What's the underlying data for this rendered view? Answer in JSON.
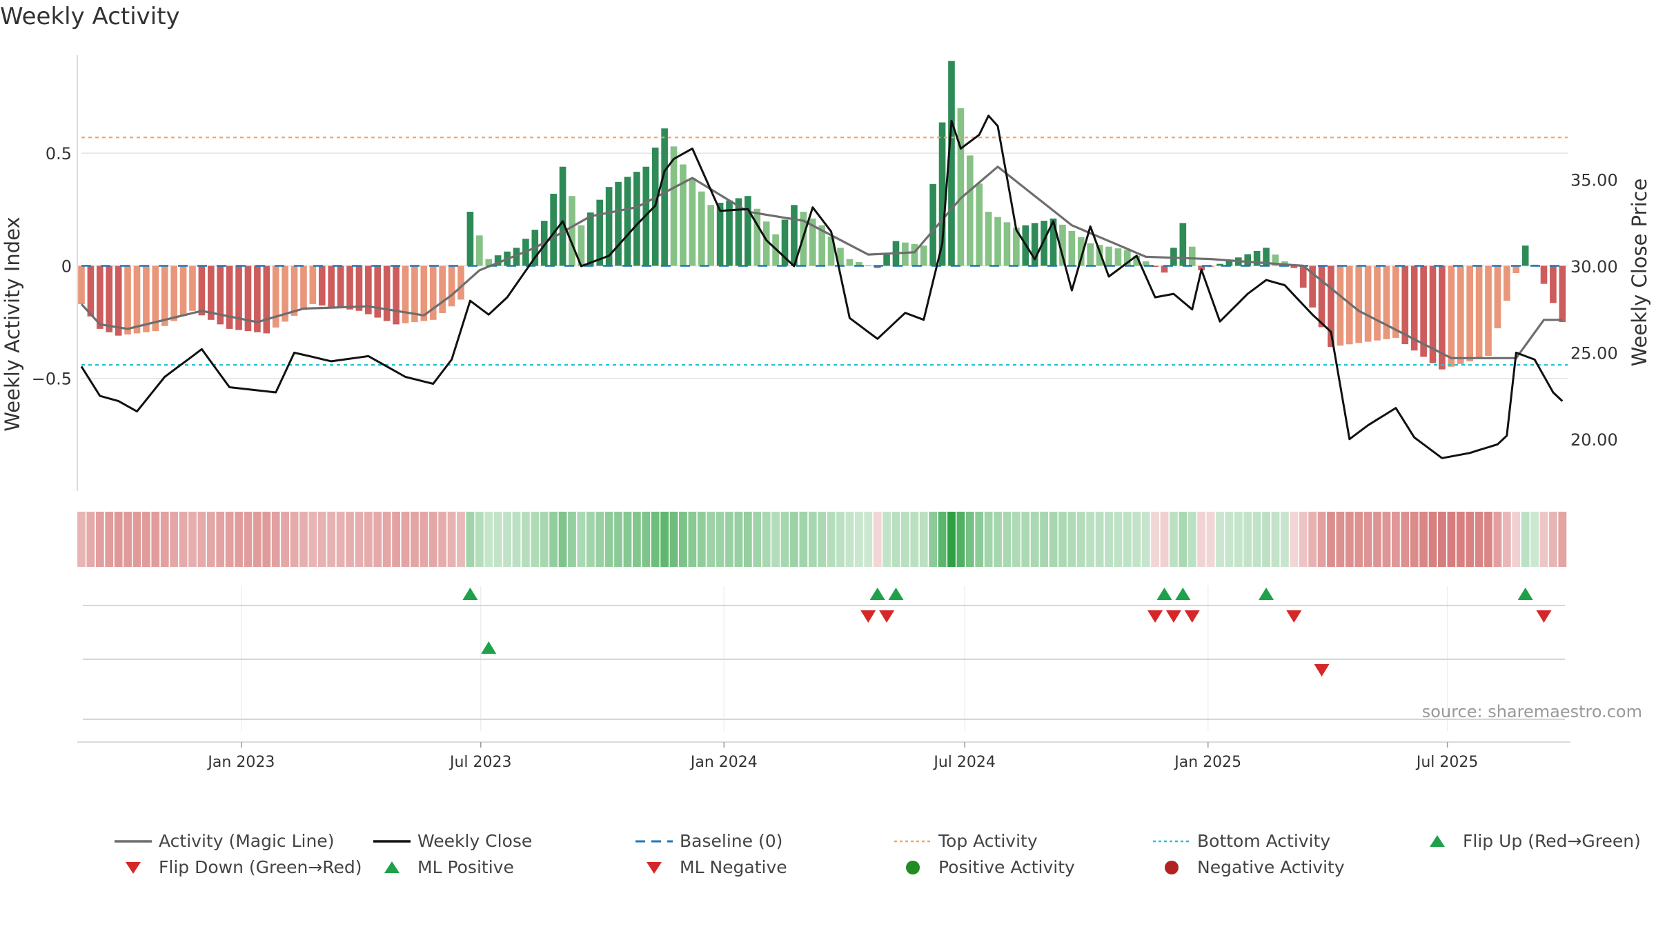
{
  "title": "Weekly Activity",
  "source": "source: sharemaestro.com",
  "colors": {
    "green_dark": "#2e8b57",
    "green_light": "#86c286",
    "red_dark": "#cd5c5c",
    "red_light": "#e9967a",
    "magic_line": "#6e6e6e",
    "close_line": "#111111",
    "baseline": "#1f77b4",
    "top": "#f4a460",
    "bottom": "#22c3d6",
    "flip_up": "#1fa14a",
    "flip_down": "#d62728",
    "pos_dot": "#228b22",
    "neg_dot": "#b22222"
  },
  "legend": [
    {
      "label": "Activity (Magic Line)",
      "icon": "solid-gray-line"
    },
    {
      "label": "Weekly Close",
      "icon": "solid-black-line"
    },
    {
      "label": "Baseline (0)",
      "icon": "dashed-blue-line"
    },
    {
      "label": "Top Activity",
      "icon": "dotted-orange-line"
    },
    {
      "label": "Bottom Activity",
      "icon": "dotted-cyan-line"
    },
    {
      "label": "Flip Up (Red→Green)",
      "icon": "green-up-triangle"
    },
    {
      "label": "Flip Down (Green→Red)",
      "icon": "red-down-triangle"
    },
    {
      "label": "ML Positive",
      "icon": "green-up-triangle"
    },
    {
      "label": "ML Negative",
      "icon": "red-down-triangle"
    },
    {
      "label": "Positive Activity",
      "icon": "green-dot"
    },
    {
      "label": "Negative Activity",
      "icon": "red-dot"
    }
  ],
  "chart_data": {
    "type": "bar",
    "ylabel": "Weekly Activity Index",
    "ylabel_right": "Weekly Close Price",
    "ylim": [
      -1.0,
      0.92
    ],
    "ylim_right": [
      17.0,
      42.0
    ],
    "yticks": [
      {
        "v": 0.5,
        "label": "0.5"
      },
      {
        "v": 0.0,
        "label": "0"
      },
      {
        "v": -0.5,
        "label": "−0.5"
      }
    ],
    "yticks_right": [
      {
        "v": 35,
        "label": "35.00"
      },
      {
        "v": 30,
        "label": "30.00"
      },
      {
        "v": 25,
        "label": "25.00"
      },
      {
        "v": 20,
        "label": "20.00"
      }
    ],
    "x_start": "2022-09-02",
    "x_end": "2025-09-30",
    "xticks": [
      {
        "date": "2023-01-01",
        "label": "Jan 2023"
      },
      {
        "date": "2023-07-01",
        "label": "Jul 2023"
      },
      {
        "date": "2024-01-01",
        "label": "Jan 2024"
      },
      {
        "date": "2024-07-01",
        "label": "Jul 2024"
      },
      {
        "date": "2025-01-01",
        "label": "Jan 2025"
      },
      {
        "date": "2025-07-01",
        "label": "Jul 2025"
      }
    ],
    "top_activity": 0.57,
    "bottom_activity": -0.44,
    "activity_keys": [
      {
        "date": "2022-09-02",
        "v": -0.17
      },
      {
        "date": "2022-09-16",
        "v": -0.28
      },
      {
        "date": "2022-09-30",
        "v": -0.31
      },
      {
        "date": "2022-10-28",
        "v": -0.29
      },
      {
        "date": "2022-11-25",
        "v": -0.2
      },
      {
        "date": "2022-12-23",
        "v": -0.28
      },
      {
        "date": "2023-01-20",
        "v": -0.3
      },
      {
        "date": "2023-02-24",
        "v": -0.17
      },
      {
        "date": "2023-03-31",
        "v": -0.2
      },
      {
        "date": "2023-04-28",
        "v": -0.26
      },
      {
        "date": "2023-05-26",
        "v": -0.24
      },
      {
        "date": "2023-06-16",
        "v": -0.15
      },
      {
        "date": "2023-06-23",
        "v": 0.24
      },
      {
        "date": "2023-07-07",
        "v": 0.03
      },
      {
        "date": "2023-07-28",
        "v": 0.08
      },
      {
        "date": "2023-08-18",
        "v": 0.2
      },
      {
        "date": "2023-09-01",
        "v": 0.44
      },
      {
        "date": "2023-09-15",
        "v": 0.18
      },
      {
        "date": "2023-10-06",
        "v": 0.35
      },
      {
        "date": "2023-11-03",
        "v": 0.44
      },
      {
        "date": "2023-11-17",
        "v": 0.61
      },
      {
        "date": "2023-12-01",
        "v": 0.45
      },
      {
        "date": "2023-12-22",
        "v": 0.27
      },
      {
        "date": "2024-01-19",
        "v": 0.31
      },
      {
        "date": "2024-02-09",
        "v": 0.14
      },
      {
        "date": "2024-02-23",
        "v": 0.27
      },
      {
        "date": "2024-03-15",
        "v": 0.18
      },
      {
        "date": "2024-04-05",
        "v": 0.03
      },
      {
        "date": "2024-04-26",
        "v": -0.01
      },
      {
        "date": "2024-05-10",
        "v": 0.11
      },
      {
        "date": "2024-05-31",
        "v": 0.09
      },
      {
        "date": "2024-06-21",
        "v": 0.91
      },
      {
        "date": "2024-07-05",
        "v": 0.49
      },
      {
        "date": "2024-07-19",
        "v": 0.24
      },
      {
        "date": "2024-08-09",
        "v": 0.17
      },
      {
        "date": "2024-09-06",
        "v": 0.21
      },
      {
        "date": "2024-10-04",
        "v": 0.1
      },
      {
        "date": "2024-11-01",
        "v": 0.07
      },
      {
        "date": "2024-11-29",
        "v": -0.03
      },
      {
        "date": "2024-12-13",
        "v": 0.19
      },
      {
        "date": "2024-12-27",
        "v": -0.02
      },
      {
        "date": "2025-02-14",
        "v": 0.08
      },
      {
        "date": "2025-03-07",
        "v": -0.01
      },
      {
        "date": "2025-04-04",
        "v": -0.36
      },
      {
        "date": "2025-05-23",
        "v": -0.32
      },
      {
        "date": "2025-06-27",
        "v": -0.46
      },
      {
        "date": "2025-08-01",
        "v": -0.4
      },
      {
        "date": "2025-08-29",
        "v": 0.09
      },
      {
        "date": "2025-09-12",
        "v": -0.08
      },
      {
        "date": "2025-09-26",
        "v": -0.25
      }
    ],
    "magic_line_keys": [
      {
        "date": "2022-09-02",
        "v": -0.17
      },
      {
        "date": "2022-09-16",
        "v": -0.26
      },
      {
        "date": "2022-10-07",
        "v": -0.28
      },
      {
        "date": "2022-12-02",
        "v": -0.2
      },
      {
        "date": "2023-01-13",
        "v": -0.25
      },
      {
        "date": "2023-02-17",
        "v": -0.19
      },
      {
        "date": "2023-04-07",
        "v": -0.18
      },
      {
        "date": "2023-05-19",
        "v": -0.22
      },
      {
        "date": "2023-06-09",
        "v": -0.13
      },
      {
        "date": "2023-06-30",
        "v": -0.02
      },
      {
        "date": "2023-08-11",
        "v": 0.08
      },
      {
        "date": "2023-09-22",
        "v": 0.22
      },
      {
        "date": "2023-10-27",
        "v": 0.26
      },
      {
        "date": "2023-12-08",
        "v": 0.39
      },
      {
        "date": "2024-01-19",
        "v": 0.24
      },
      {
        "date": "2024-03-01",
        "v": 0.2
      },
      {
        "date": "2024-04-19",
        "v": 0.05
      },
      {
        "date": "2024-05-24",
        "v": 0.06
      },
      {
        "date": "2024-06-28",
        "v": 0.3
      },
      {
        "date": "2024-07-26",
        "v": 0.44
      },
      {
        "date": "2024-09-20",
        "v": 0.18
      },
      {
        "date": "2024-11-15",
        "v": 0.04
      },
      {
        "date": "2025-01-03",
        "v": 0.03
      },
      {
        "date": "2025-03-14",
        "v": 0.0
      },
      {
        "date": "2025-04-25",
        "v": -0.2
      },
      {
        "date": "2025-07-04",
        "v": -0.41
      },
      {
        "date": "2025-08-22",
        "v": -0.41
      },
      {
        "date": "2025-09-12",
        "v": -0.24
      },
      {
        "date": "2025-09-26",
        "v": -0.24
      }
    ],
    "close_keys": [
      {
        "date": "2022-09-02",
        "v": 24.2
      },
      {
        "date": "2022-09-16",
        "v": 22.5
      },
      {
        "date": "2022-09-30",
        "v": 22.2
      },
      {
        "date": "2022-10-14",
        "v": 21.6
      },
      {
        "date": "2022-11-04",
        "v": 23.6
      },
      {
        "date": "2022-12-02",
        "v": 25.2
      },
      {
        "date": "2022-12-23",
        "v": 23.0
      },
      {
        "date": "2023-01-27",
        "v": 22.7
      },
      {
        "date": "2023-02-10",
        "v": 25.0
      },
      {
        "date": "2023-03-10",
        "v": 24.5
      },
      {
        "date": "2023-04-07",
        "v": 24.8
      },
      {
        "date": "2023-05-05",
        "v": 23.6
      },
      {
        "date": "2023-05-26",
        "v": 23.2
      },
      {
        "date": "2023-06-09",
        "v": 24.6
      },
      {
        "date": "2023-06-23",
        "v": 28.0
      },
      {
        "date": "2023-07-07",
        "v": 27.2
      },
      {
        "date": "2023-07-21",
        "v": 28.2
      },
      {
        "date": "2023-08-11",
        "v": 30.5
      },
      {
        "date": "2023-09-01",
        "v": 32.6
      },
      {
        "date": "2023-09-15",
        "v": 30.0
      },
      {
        "date": "2023-10-06",
        "v": 30.6
      },
      {
        "date": "2023-10-27",
        "v": 32.4
      },
      {
        "date": "2023-11-10",
        "v": 33.5
      },
      {
        "date": "2023-11-17",
        "v": 35.5
      },
      {
        "date": "2023-11-24",
        "v": 36.2
      },
      {
        "date": "2023-12-08",
        "v": 36.8
      },
      {
        "date": "2023-12-29",
        "v": 33.2
      },
      {
        "date": "2024-01-19",
        "v": 33.3
      },
      {
        "date": "2024-02-02",
        "v": 31.5
      },
      {
        "date": "2024-02-23",
        "v": 30.0
      },
      {
        "date": "2024-03-08",
        "v": 33.4
      },
      {
        "date": "2024-03-22",
        "v": 32.0
      },
      {
        "date": "2024-04-05",
        "v": 27.0
      },
      {
        "date": "2024-04-26",
        "v": 25.8
      },
      {
        "date": "2024-05-17",
        "v": 27.3
      },
      {
        "date": "2024-05-31",
        "v": 26.9
      },
      {
        "date": "2024-06-14",
        "v": 31.3
      },
      {
        "date": "2024-06-21",
        "v": 38.4
      },
      {
        "date": "2024-06-28",
        "v": 36.8
      },
      {
        "date": "2024-07-12",
        "v": 37.6
      },
      {
        "date": "2024-07-19",
        "v": 38.7
      },
      {
        "date": "2024-07-26",
        "v": 38.1
      },
      {
        "date": "2024-08-09",
        "v": 32.1
      },
      {
        "date": "2024-08-23",
        "v": 30.4
      },
      {
        "date": "2024-09-06",
        "v": 32.6
      },
      {
        "date": "2024-09-20",
        "v": 28.6
      },
      {
        "date": "2024-10-04",
        "v": 32.3
      },
      {
        "date": "2024-10-18",
        "v": 29.4
      },
      {
        "date": "2024-11-08",
        "v": 30.6
      },
      {
        "date": "2024-11-22",
        "v": 28.2
      },
      {
        "date": "2024-12-06",
        "v": 28.4
      },
      {
        "date": "2024-12-20",
        "v": 27.5
      },
      {
        "date": "2024-12-27",
        "v": 29.8
      },
      {
        "date": "2025-01-10",
        "v": 26.8
      },
      {
        "date": "2025-01-31",
        "v": 28.4
      },
      {
        "date": "2025-02-14",
        "v": 29.2
      },
      {
        "date": "2025-02-28",
        "v": 28.9
      },
      {
        "date": "2025-03-21",
        "v": 27.2
      },
      {
        "date": "2025-04-04",
        "v": 26.2
      },
      {
        "date": "2025-04-18",
        "v": 20.0
      },
      {
        "date": "2025-05-02",
        "v": 20.8
      },
      {
        "date": "2025-05-23",
        "v": 21.8
      },
      {
        "date": "2025-06-06",
        "v": 20.1
      },
      {
        "date": "2025-06-27",
        "v": 18.9
      },
      {
        "date": "2025-07-18",
        "v": 19.2
      },
      {
        "date": "2025-08-08",
        "v": 19.7
      },
      {
        "date": "2025-08-15",
        "v": 20.2
      },
      {
        "date": "2025-08-22",
        "v": 25.0
      },
      {
        "date": "2025-09-05",
        "v": 24.6
      },
      {
        "date": "2025-09-19",
        "v": 22.7
      },
      {
        "date": "2025-09-26",
        "v": 22.2
      }
    ],
    "flip_up_dates": [
      "2023-06-23",
      "2024-04-26",
      "2024-05-10",
      "2024-11-29",
      "2024-12-13",
      "2025-02-14",
      "2025-08-29"
    ],
    "flip_down_dates": [
      "2024-04-19",
      "2024-05-03",
      "2024-11-22",
      "2024-12-06",
      "2024-12-20",
      "2025-03-07",
      "2025-09-12"
    ],
    "ml_positive_dates": [
      "2023-07-07"
    ],
    "ml_negative_dates": [
      "2025-03-28"
    ],
    "positive_activity_dates": [],
    "negative_activity_dates": []
  }
}
